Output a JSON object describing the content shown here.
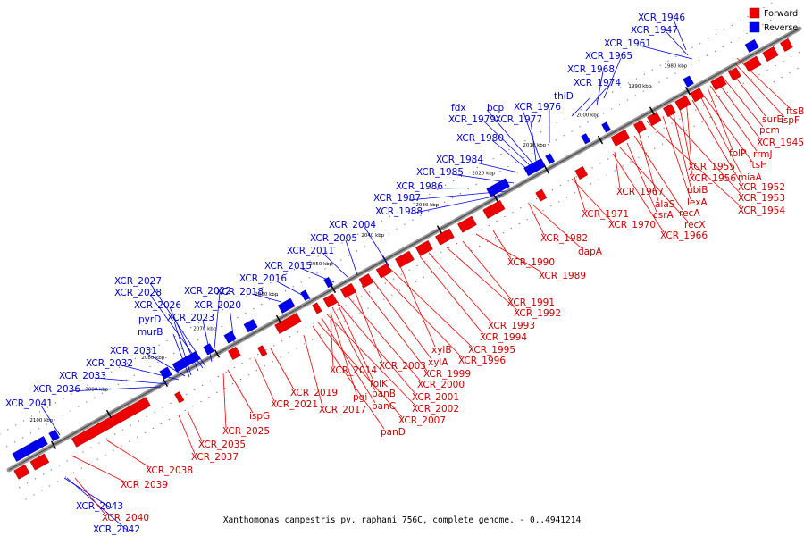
{
  "caption": "Xanthomonas campestris pv. raphani 756C, complete genome. - 0..4941214",
  "legend": [
    {
      "label": "Forward",
      "color": "#ee0000"
    },
    {
      "label": "Reverse",
      "color": "#0000ee"
    }
  ],
  "colors": {
    "forward": "#ee0000",
    "reverse": "#0000ee",
    "forward_label": "#cc0000",
    "reverse_label": "#0000cc"
  },
  "ticks": [
    "1980 kbp",
    "1990 kbp",
    "2000 kbp",
    "2010 kbp",
    "2020 kbp",
    "2030 kbp",
    "2040 kbp",
    "2050 kbp",
    "2060 kbp",
    "2070 kbp",
    "2080 kbp",
    "2090 kbp",
    "2100 kbp"
  ],
  "reverse_labels": [
    "XCR_1946",
    "XCR_1947",
    "XCR_1961",
    "XCR_1965",
    "XCR_1968",
    "XCR_1974",
    "thiD",
    "XCR_1976",
    "bcp",
    "XCR_1977",
    "fdx",
    "XCR_1979",
    "XCR_1980",
    "XCR_1984",
    "XCR_1985",
    "XCR_1986",
    "XCR_1987",
    "XCR_1988",
    "XCR_2004",
    "XCR_2005",
    "XCR_2011",
    "XCR_2015",
    "XCR_2016",
    "XCR_2018",
    "XCR_2027",
    "XCR_2028",
    "XCR_2022",
    "XCR_2026",
    "XCR_2020",
    "XCR_2023",
    "pyrD",
    "murB",
    "XCR_2031",
    "XCR_2032",
    "XCR_2033",
    "XCR_2036",
    "XCR_2041",
    "XCR_2043",
    "XCR_2042"
  ],
  "forward_labels": [
    "ftsB",
    "ispF",
    "surE",
    "pcm",
    "XCR_1945",
    "rrmJ",
    "folP",
    "miaA",
    "ftsH",
    "XCR_1955",
    "XCR_1956",
    "XCR_1952",
    "ubiB",
    "XCR_1953",
    "lexA",
    "XCR_1954",
    "alaS",
    "XCR_1967",
    "recA",
    "csrA",
    "recX",
    "XCR_1971",
    "XCR_1966",
    "XCR_1970",
    "XCR_1982",
    "dapA",
    "XCR_1990",
    "XCR_1989",
    "XCR_1991",
    "XCR_1992",
    "XCR_1993",
    "XCR_1994",
    "xylB",
    "XCR_1995",
    "XCR_1996",
    "xylA",
    "XCR_2003",
    "XCR_1999",
    "XCR_2014",
    "XCR_2000",
    "folK",
    "panB",
    "XCR_2001",
    "XCR_2019",
    "pgi",
    "XCR_2002",
    "panC",
    "XCR_2021",
    "XCR_2017",
    "XCR_2007",
    "panD",
    "ispG",
    "XCR_2025",
    "XCR_2035",
    "XCR_2037",
    "XCR_2038",
    "XCR_2039",
    "XCR_2040"
  ]
}
